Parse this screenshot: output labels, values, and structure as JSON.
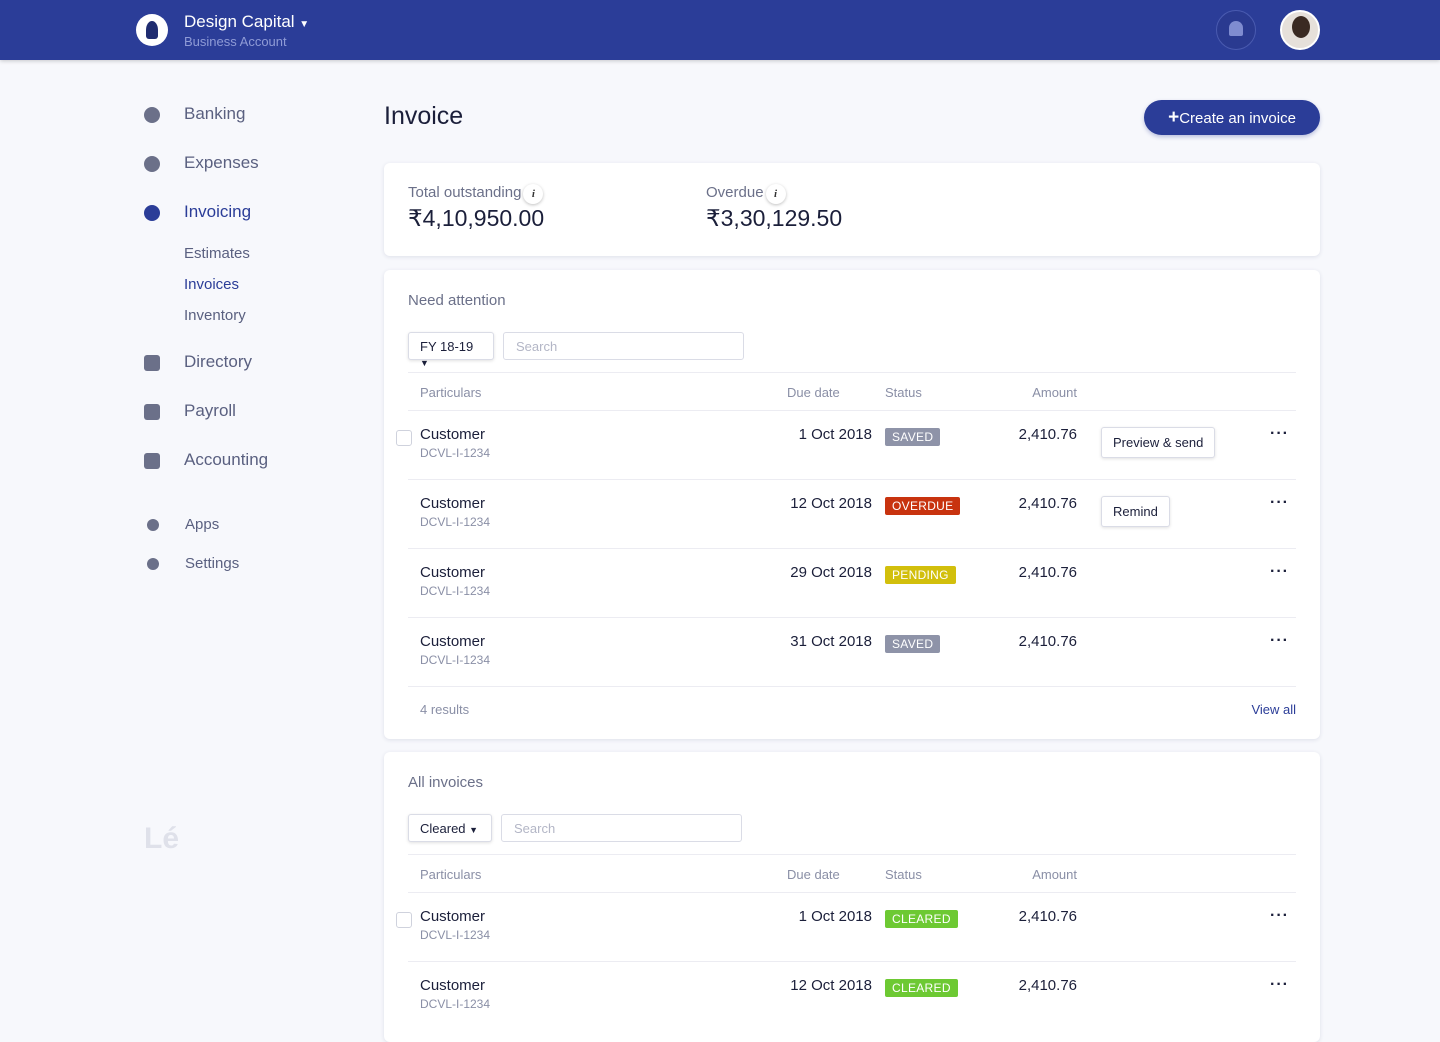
{
  "header": {
    "company": "Design Capital",
    "account_type": "Business Account"
  },
  "nav": {
    "items": [
      "Banking",
      "Expenses",
      "Invoicing"
    ],
    "subitems": [
      "Estimates",
      "Invoices",
      "Inventory"
    ],
    "more_items": [
      "Directory",
      "Payroll",
      "Accounting"
    ],
    "bottom_items": [
      "Apps",
      "Settings"
    ],
    "brand": "Lé"
  },
  "page": {
    "title": "Invoice",
    "create_button": "Create an invoice"
  },
  "summary": [
    {
      "label": "Total outstanding",
      "value": "₹4,10,950.00"
    },
    {
      "label": "Overdue",
      "value": "₹3,30,129.50"
    }
  ],
  "attention": {
    "title": "Need attention",
    "filter": "FY 18-19",
    "search": "Search",
    "columns": [
      "Particulars",
      "Due date",
      "Status",
      "Amount"
    ],
    "rows": [
      {
        "name": "Customer",
        "id": "DCVL-I-1234",
        "due": "1 Oct 2018",
        "status": "SAVED",
        "status_color": "#8e93a8",
        "amount": "2,410.76",
        "action": "Preview & send"
      },
      {
        "name": "Customer",
        "id": "DCVL-I-1234",
        "due": "12 Oct 2018",
        "status": "OVERDUE",
        "status_color": "#c8330f",
        "amount": "2,410.76",
        "action": "Remind"
      },
      {
        "name": "Customer",
        "id": "DCVL-I-1234",
        "due": "29 Oct 2018",
        "status": "PENDING",
        "status_color": "#d2bf0c",
        "amount": "2,410.76"
      },
      {
        "name": "Customer",
        "id": "DCVL-I-1234",
        "due": "31 Oct 2018",
        "status": "SAVED",
        "status_color": "#8e93a8",
        "amount": "2,410.76"
      }
    ],
    "results": "4 results",
    "view_all": "View all"
  },
  "all_invoices": {
    "title": "All invoices",
    "filter": "Cleared",
    "search": "Search",
    "columns": [
      "Particulars",
      "Due date",
      "Status",
      "Amount"
    ],
    "rows": [
      {
        "name": "Customer",
        "id": "DCVL-I-1234",
        "due": "1 Oct 2018",
        "status": "CLEARED",
        "status_color": "#6dc933",
        "amount": "2,410.76"
      },
      {
        "name": "Customer",
        "id": "DCVL-I-1234",
        "due": "12 Oct 2018",
        "status": "CLEARED",
        "status_color": "#6dc933",
        "amount": "2,410.76"
      }
    ]
  }
}
